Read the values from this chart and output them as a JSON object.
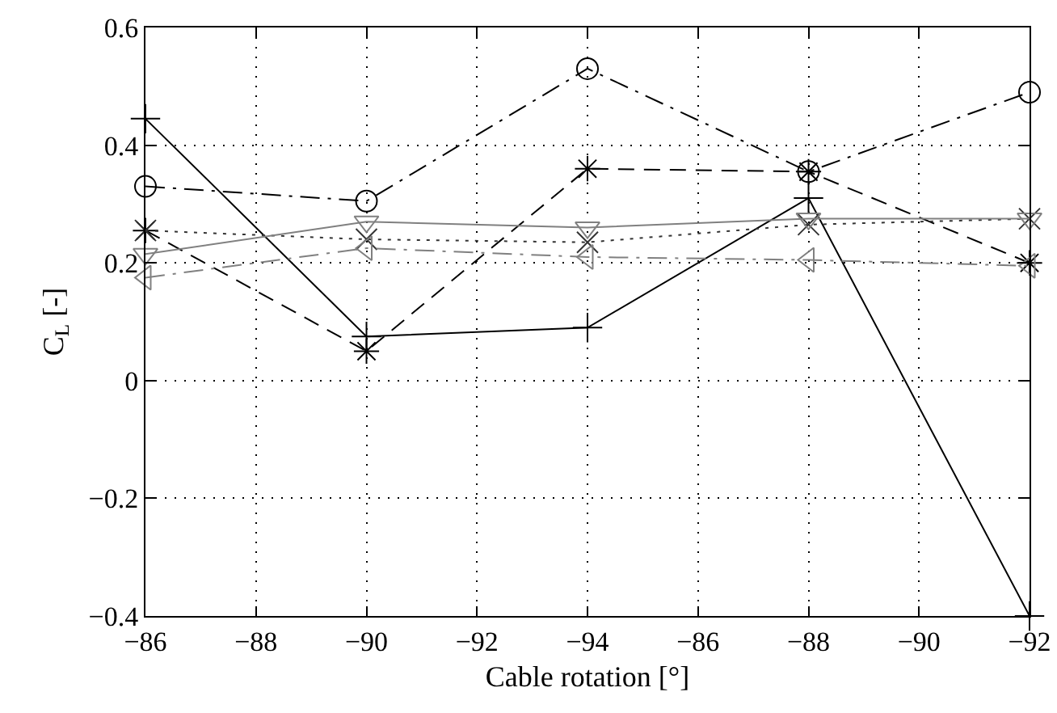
{
  "chart_data": {
    "type": "line",
    "xlabel": "Cable rotation [°]",
    "ylabel": "C$_{L}$ [-]",
    "categories": [
      "−86",
      "−88",
      "−90",
      "−92",
      "−94",
      "−86",
      "−88",
      "−90",
      "−92"
    ],
    "ylim": [
      -0.4,
      0.6
    ],
    "yticks": [
      {
        "value": -0.4,
        "label": "−0.4"
      },
      {
        "value": -0.2,
        "label": "−0.2"
      },
      0,
      0.2,
      0.4,
      0.6
    ],
    "grid": true,
    "series": [
      {
        "color": "#000000",
        "marker": "plus",
        "line_style": "solid",
        "values": [
          0.445,
          null,
          0.075,
          null,
          0.09,
          null,
          0.31,
          null,
          -0.4
        ]
      },
      {
        "color": "#000000",
        "marker": "circle",
        "line_style": "dashdot",
        "values": [
          0.33,
          null,
          0.305,
          null,
          0.53,
          null,
          0.355,
          null,
          0.49
        ]
      },
      {
        "color": "#000000",
        "marker": "cross",
        "line_style": "dashed",
        "values": [
          0.255,
          null,
          0.05,
          null,
          0.36,
          null,
          0.355,
          null,
          0.2
        ]
      },
      {
        "color": "#333333",
        "marker": "x",
        "line_style": "dotted",
        "values": [
          0.255,
          null,
          0.24,
          null,
          0.235,
          null,
          0.265,
          null,
          0.275
        ]
      },
      {
        "color": "#808080",
        "marker": "triangle-down",
        "line_style": "solid",
        "values": [
          0.215,
          null,
          0.27,
          null,
          0.26,
          null,
          0.275,
          null,
          0.275
        ]
      },
      {
        "color": "#808080",
        "marker": "triangle-left",
        "line_style": "dashdot",
        "values": [
          0.175,
          null,
          0.225,
          null,
          0.21,
          null,
          0.205,
          null,
          0.195
        ]
      }
    ]
  }
}
